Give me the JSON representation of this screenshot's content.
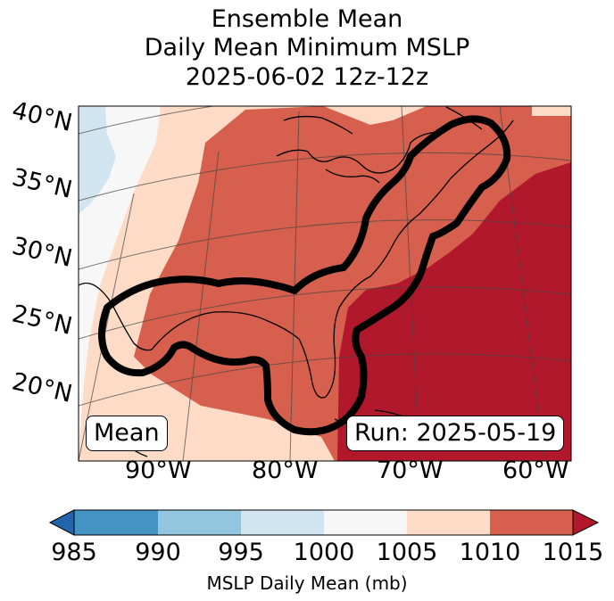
{
  "title": {
    "line1": "Ensemble Mean",
    "line2": "Daily Mean Minimum MSLP",
    "line3": "2025-06-02 12z-12z"
  },
  "map": {
    "latitude_labels": [
      "40°N",
      "35°N",
      "30°N",
      "25°N",
      "20°N"
    ],
    "longitude_labels": [
      "90°W",
      "80°W",
      "70°W",
      "60°W"
    ],
    "left_box_label": "Mean",
    "right_box_label": "Run: 2025-05-19"
  },
  "colorbar": {
    "ticks": [
      "985",
      "990",
      "995",
      "1000",
      "1005",
      "1010",
      "1015"
    ],
    "label": "MSLP Daily Mean (mb)",
    "colors": {
      "under": "#2166ac",
      "c985_990": "#4393c3",
      "c990_995": "#92c5de",
      "c995_1000": "#d1e5f0",
      "c1000_1005": "#f7f7f7",
      "c1005_1010": "#fddbc7",
      "c1010_1015": "#d6604d",
      "over": "#b2182b"
    }
  }
}
